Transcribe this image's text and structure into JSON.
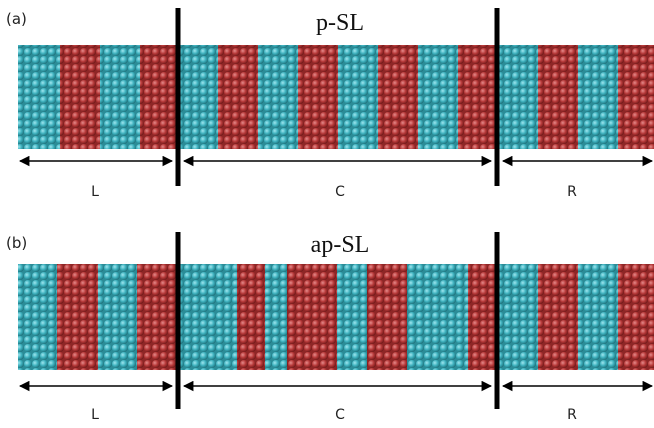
{
  "panels": [
    {
      "label": "(a)",
      "title": "p-SL",
      "regions": [
        "L",
        "C",
        "R"
      ]
    },
    {
      "label": "(b)",
      "title": "ap-SL",
      "regions": [
        "L",
        "C",
        "R"
      ]
    }
  ]
}
